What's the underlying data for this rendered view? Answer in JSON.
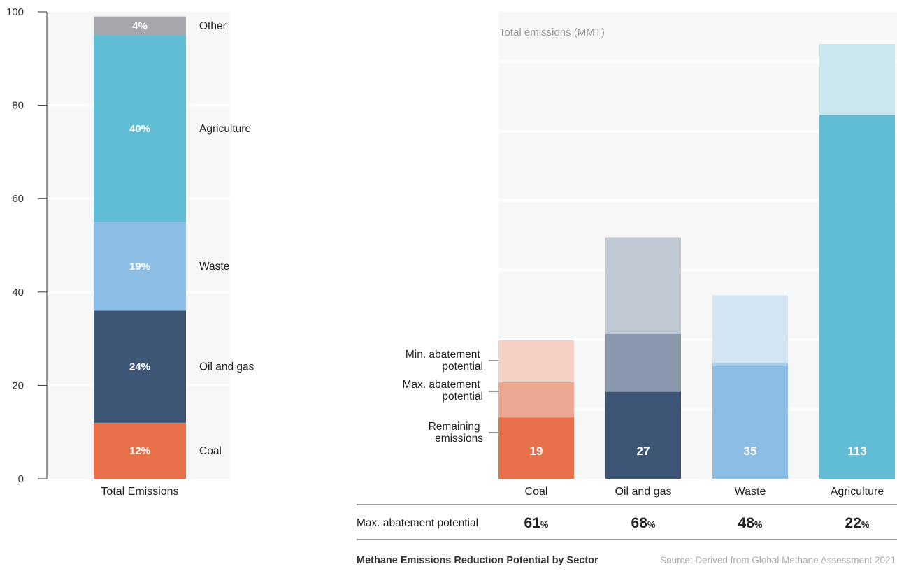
{
  "chart_data": [
    {
      "type": "bar",
      "stacked": true,
      "categories": [
        "Total Emissions"
      ],
      "yticks": [
        "0",
        "20",
        "40",
        "60",
        "80",
        "100"
      ],
      "ylim": [
        0,
        100
      ],
      "grid": true,
      "series": [
        {
          "name": "Coal",
          "value": 12,
          "label": "12%",
          "color": "#E8704A"
        },
        {
          "name": "Oil and gas",
          "value": 24,
          "label": "24%",
          "color": "#3E5675"
        },
        {
          "name": "Waste",
          "value": 19,
          "label": "19%",
          "color": "#8BBDE5"
        },
        {
          "name": "Agriculture",
          "value": 40,
          "label": "40%",
          "color": "#60BDD3"
        },
        {
          "name": "Other",
          "value": 4,
          "label": "4%",
          "color": "#A6A8AD"
        }
      ]
    },
    {
      "type": "bar",
      "stacked": true,
      "total_label": "Total emissions (MMT)",
      "categories": [
        "Coal",
        "Oil and gas",
        "Waste",
        "Agriculture"
      ],
      "ylim": [
        0,
        145
      ],
      "grid": true,
      "legend": [
        "Min. abatement potential",
        "Max. abatement potential",
        "Remaining emissions"
      ],
      "remaining": [
        19,
        27,
        35,
        113
      ],
      "remaining_labels": [
        "19",
        "27",
        "35",
        "113"
      ],
      "max_abatement": [
        11,
        18,
        1,
        0
      ],
      "min_abatement": [
        13,
        30,
        21,
        22
      ],
      "colors": [
        {
          "remaining": "#E8704A",
          "max": "#EDA791",
          "min": "#F3D0C3"
        },
        {
          "remaining": "#3E5675",
          "max": "#8998AC",
          "min": "#C0C9D3"
        },
        {
          "remaining": "#8BBDE5",
          "max": "#A9CEEC",
          "min": "#D4E6F4"
        },
        {
          "remaining": "#60BDD3",
          "max": "#8FD0DF",
          "min": "#CAE6EE"
        }
      ],
      "table": {
        "row_label": "Max. abatement potential",
        "values": [
          {
            "number": "61",
            "unit": "%"
          },
          {
            "number": "68",
            "unit": "%"
          },
          {
            "number": "48",
            "unit": "%"
          },
          {
            "number": "22",
            "unit": "%"
          }
        ]
      }
    }
  ],
  "footer": {
    "title": "Methane Emissions Reduction Potential by Sector",
    "source": "Source: Derived from Global Methane Assessment 2021"
  }
}
